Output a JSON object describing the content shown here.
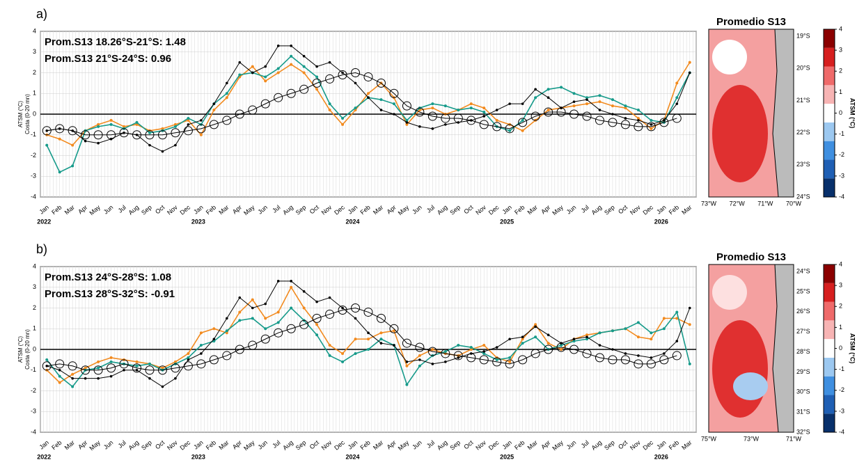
{
  "chart_data": [
    {
      "type": "line",
      "panel_label": "a)",
      "y_label": [
        "ATSM (°C)",
        "Costa (0-20 mn)"
      ],
      "categories": [
        "Jan",
        "Feb",
        "Mar",
        "Apr",
        "May",
        "Jun",
        "Jul",
        "Aug",
        "Sep",
        "Oct",
        "Nov",
        "Dec",
        "Jan",
        "Feb",
        "Mar",
        "Apr",
        "May",
        "Jun",
        "Jul",
        "Aug",
        "Sep",
        "Oct",
        "Nov",
        "Dec",
        "Jan",
        "Feb",
        "Mar",
        "Apr",
        "May",
        "Jun",
        "Jul",
        "Aug",
        "Sep",
        "Oct",
        "Nov",
        "Dec",
        "Jan",
        "Feb",
        "Mar",
        "Apr",
        "May",
        "Jun",
        "Jul",
        "Aug",
        "Sep",
        "Oct",
        "Nov",
        "Dec",
        "Jan",
        "Feb",
        "Mar"
      ],
      "years": [
        "2022",
        "2023",
        "2024",
        "2025",
        "2026"
      ],
      "ylim": [
        -4,
        4
      ],
      "yticks": [
        -4,
        -3,
        -2,
        -1,
        0,
        1,
        2,
        3,
        4
      ],
      "grid": true,
      "series": [
        {
          "name": "Prom.S13 18.26°S-21°S:  1.48",
          "color": "#f28a1e",
          "values": [
            -1,
            -1.2,
            -1.5,
            -0.8,
            -0.5,
            -0.3,
            -0.6,
            -0.5,
            -0.8,
            -0.7,
            -0.5,
            -0.3,
            -1,
            0.2,
            0.8,
            1.8,
            2.3,
            1.6,
            2,
            2.4,
            2,
            1.2,
            0.2,
            -0.5,
            0.2,
            1,
            1.5,
            0.8,
            -0.5,
            0.2,
            0.3,
            0,
            0.2,
            0.5,
            0.3,
            -0.3,
            -0.5,
            -0.8,
            -0.3,
            0.2,
            0.3,
            0.4,
            0.5,
            0.6,
            0.4,
            0.3,
            -0.2,
            -0.7,
            -0.3,
            1.5,
            2.5
          ]
        },
        {
          "name": "Prom.S13 21°S-24°S:  0.96",
          "color": "#169a8a",
          "values": [
            -1.5,
            -2.8,
            -2.5,
            -0.8,
            -0.6,
            -0.5,
            -0.7,
            -0.4,
            -0.9,
            -0.8,
            -0.6,
            -0.2,
            -0.5,
            0.5,
            1,
            1.9,
            2,
            1.8,
            2.2,
            2.8,
            2.3,
            1.8,
            0.5,
            -0.2,
            0.3,
            0.8,
            0.7,
            0.5,
            -0.3,
            0.3,
            0.5,
            0.4,
            0.2,
            0.3,
            0.1,
            -0.6,
            -0.8,
            -0.3,
            0.8,
            1.2,
            1.3,
            1,
            0.8,
            0.9,
            0.7,
            0.4,
            0.2,
            -0.3,
            -0.4,
            0.8,
            2
          ]
        },
        {
          "color": "#000000",
          "marker": "dot",
          "values": [
            -0.8,
            -0.7,
            -0.8,
            -1.3,
            -1.4,
            -1.2,
            -0.9,
            -1,
            -1.5,
            -1.8,
            -1.5,
            -0.5,
            -0.3,
            0.5,
            1.5,
            2.5,
            2,
            2.3,
            3.3,
            3.3,
            2.8,
            2.3,
            2.5,
            2,
            1.5,
            0.8,
            0.2,
            0,
            -0.4,
            -0.6,
            -0.7,
            -0.5,
            -0.4,
            -0.3,
            -0.1,
            0.2,
            0.5,
            0.5,
            1.2,
            0.8,
            0.3,
            0.6,
            0.7,
            0.2,
            0,
            -0.2,
            -0.3,
            -0.5,
            -0.3,
            0.5,
            2
          ]
        },
        {
          "color": "#000000",
          "marker": "circle",
          "values": [
            -0.8,
            -0.7,
            -0.8,
            -1,
            -1,
            -1,
            -0.9,
            -1,
            -1,
            -1,
            -0.9,
            -0.8,
            -0.7,
            -0.5,
            -0.3,
            0,
            0.2,
            0.5,
            0.8,
            1,
            1.2,
            1.5,
            1.7,
            1.9,
            2,
            1.8,
            1.5,
            1,
            0.4,
            0.1,
            -0.1,
            -0.2,
            -0.2,
            -0.3,
            -0.5,
            -0.6,
            -0.7,
            -0.4,
            -0.1,
            0.1,
            0.1,
            0,
            -0.1,
            -0.3,
            -0.4,
            -0.5,
            -0.6,
            -0.6,
            -0.4,
            -0.2,
            null
          ]
        }
      ],
      "map": {
        "title": "Promedio S13",
        "lat_labels": [
          "19°S",
          "20°S",
          "21°S",
          "22°S",
          "23°S",
          "24°S"
        ],
        "lon_labels": [
          "73°W",
          "72°W",
          "71°W",
          "70°W"
        ],
        "colorbar_ticks": [
          -4,
          -3,
          -2,
          -1,
          0,
          1,
          2,
          3,
          4
        ],
        "colorbar_label": "ATSM (°C)"
      }
    },
    {
      "type": "line",
      "panel_label": "b)",
      "y_label": [
        "ATSM (°C)",
        "Costa (0-20 mn)"
      ],
      "categories": [
        "Jan",
        "Feb",
        "Mar",
        "Apr",
        "May",
        "Jun",
        "Jul",
        "Aug",
        "Sep",
        "Oct",
        "Nov",
        "Dec",
        "Jan",
        "Feb",
        "Mar",
        "Apr",
        "May",
        "Jun",
        "Jul",
        "Aug",
        "Sep",
        "Oct",
        "Nov",
        "Dec",
        "Jan",
        "Feb",
        "Mar",
        "Apr",
        "May",
        "Jun",
        "Jul",
        "Aug",
        "Sep",
        "Oct",
        "Nov",
        "Dec",
        "Jan",
        "Feb",
        "Mar",
        "Apr",
        "May",
        "Jun",
        "Jul",
        "Aug",
        "Sep",
        "Oct",
        "Nov",
        "Dec",
        "Jan",
        "Feb",
        "Mar"
      ],
      "years": [
        "2022",
        "2023",
        "2024",
        "2025",
        "2026"
      ],
      "ylim": [
        -4,
        4
      ],
      "yticks": [
        -4,
        -3,
        -2,
        -1,
        0,
        1,
        2,
        3,
        4
      ],
      "grid": true,
      "series": [
        {
          "name": "Prom.S13 24°S-28°S:  1.08",
          "color": "#f28a1e",
          "values": [
            -1,
            -1.6,
            -1.2,
            -0.9,
            -0.6,
            -0.4,
            -0.5,
            -0.6,
            -0.7,
            -0.9,
            -0.6,
            -0.2,
            0.8,
            1,
            0.8,
            1.8,
            2.4,
            1.5,
            1.8,
            3,
            2,
            1.2,
            0.2,
            -0.2,
            0.5,
            0.5,
            0.8,
            0.9,
            -0.8,
            -0.3,
            0,
            -0.2,
            -0.3,
            0,
            0.2,
            -0.4,
            -0.6,
            0.5,
            1.2,
            0.3,
            0,
            0.5,
            0.7,
            0.8,
            0.9,
            1,
            0.6,
            0.5,
            1.5,
            1.5,
            1.2
          ]
        },
        {
          "name": "Prom.S13 28°S-32°S:  -0.91",
          "color": "#169a8a",
          "values": [
            -0.5,
            -1.3,
            -1.8,
            -1,
            -0.9,
            -0.6,
            -0.7,
            -0.8,
            -0.7,
            -1,
            -0.7,
            -0.4,
            0.2,
            0.4,
            0.9,
            1.4,
            1.5,
            1,
            1.3,
            2,
            1.4,
            0.7,
            -0.3,
            -0.6,
            -0.2,
            0,
            0.5,
            0.2,
            -1.7,
            -0.8,
            -0.3,
            -0.1,
            0.2,
            0.1,
            -0.2,
            -0.5,
            -0.4,
            0.3,
            0.6,
            0,
            0.2,
            0.4,
            0.5,
            0.8,
            0.9,
            1,
            1.3,
            0.8,
            1,
            1.8,
            -0.7
          ]
        },
        {
          "color": "#000000",
          "marker": "dot",
          "values": [
            -0.8,
            -1,
            -1.4,
            -1.4,
            -1.4,
            -1.3,
            -1,
            -1,
            -1.4,
            -1.8,
            -1.4,
            -0.5,
            -0.2,
            0.5,
            1.5,
            2.5,
            2,
            2.2,
            3.3,
            3.3,
            2.8,
            2.3,
            2.5,
            2,
            1.5,
            0.8,
            0.3,
            0.2,
            -0.6,
            -0.5,
            -0.7,
            -0.6,
            -0.4,
            -0.2,
            -0.1,
            0.1,
            0.5,
            0.6,
            1.1,
            0.7,
            0.3,
            0.5,
            0.6,
            0.2,
            0,
            -0.2,
            -0.3,
            -0.4,
            -0.2,
            0.4,
            2
          ]
        },
        {
          "color": "#000000",
          "marker": "circle",
          "values": [
            -0.8,
            -0.7,
            -0.8,
            -1,
            -1,
            -0.9,
            -0.7,
            -0.9,
            -1,
            -1,
            -0.9,
            -0.8,
            -0.7,
            -0.5,
            -0.3,
            0,
            0.2,
            0.5,
            0.8,
            1,
            1.2,
            1.5,
            1.7,
            1.9,
            2,
            1.8,
            1.5,
            1,
            0.3,
            0.1,
            -0.1,
            -0.2,
            -0.3,
            -0.4,
            -0.5,
            -0.6,
            -0.7,
            -0.5,
            -0.2,
            0,
            0.1,
            0,
            -0.2,
            -0.4,
            -0.5,
            -0.5,
            -0.7,
            -0.7,
            -0.5,
            -0.3,
            null
          ]
        }
      ],
      "map": {
        "title": "Promedio S13",
        "lat_labels": [
          "24°S",
          "25°S",
          "26°S",
          "27°S",
          "28°S",
          "29°S",
          "30°S",
          "31°S",
          "32°S"
        ],
        "lon_labels": [
          "75°W",
          "73°W",
          "71°W"
        ],
        "colorbar_ticks": [
          -4,
          -3,
          -2,
          -1,
          0,
          1,
          2,
          3,
          4
        ],
        "colorbar_label": "ATSM (°C)"
      }
    }
  ]
}
